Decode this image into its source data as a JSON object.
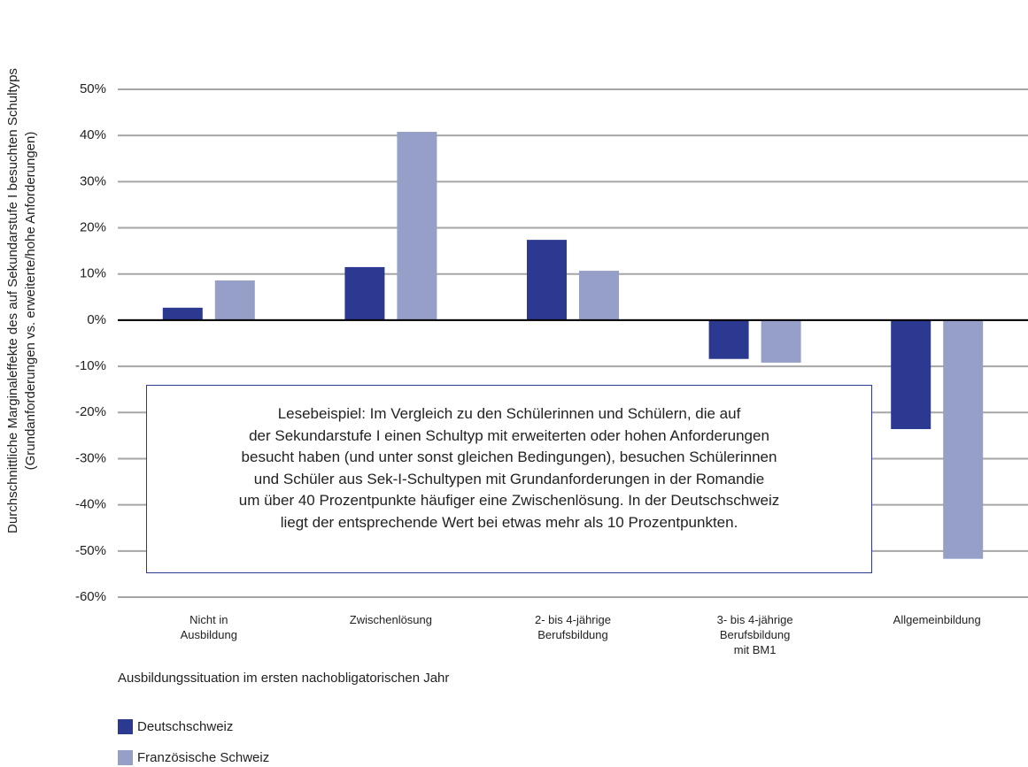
{
  "chart_data": {
    "type": "bar",
    "y_label": "Durchschnittliche Marginaleffekte des auf Sekundarstufe I besuchten Schultyps\n(Grundanforderungen vs. erweiterte/hohe Anforderungen)",
    "x_label": "Ausbildungssituation im ersten nachobligatorischen Jahr",
    "annotation": "Lesebeispiel: Im Vergleich zu den Schülerinnen und Schülern, die auf\nder Sekundarstufe I einen Schultyp mit erweiterten oder hohen Anforderungen\nbesucht haben (und unter sonst gleichen Bedingungen), besuchen Schülerinnen\nund Schüler aus Sek-I-Schultypen mit Grundanforderungen in der Romandie\num über 40 Prozentpunkte häufiger eine Zwischenlösung. In der Deutschschweiz\nliegt der entsprechende Wert bei etwas mehr als 10 Prozentpunkten.",
    "categories": [
      "Nicht in\nAusbildung",
      "Zwischenlösung",
      "2- bis 4-jährige\nBerufsbildung",
      "3- bis 4-jährige\nBerufsbildung\nmit BM1",
      "Allgemeinbildung"
    ],
    "series": [
      {
        "name": "Deutschschweiz",
        "color": "#2b3990",
        "values": [
          2.7,
          11.5,
          17.4,
          -8.4,
          -23.6
        ]
      },
      {
        "name": "Französische Schweiz",
        "color": "#959fc8",
        "values": [
          8.6,
          40.8,
          10.7,
          -9.2,
          -51.7
        ]
      }
    ],
    "ylim": [
      -60,
      50
    ],
    "yticks": [
      {
        "value": -60,
        "label": "-60%"
      },
      {
        "value": -50,
        "label": "-50%"
      },
      {
        "value": -40,
        "label": "-40%"
      },
      {
        "value": -30,
        "label": "-30%"
      },
      {
        "value": -20,
        "label": "-20%"
      },
      {
        "value": -10,
        "label": "-10%"
      },
      {
        "value": 0,
        "label": "0%"
      },
      {
        "value": 10,
        "label": "10%"
      },
      {
        "value": 20,
        "label": "20%"
      },
      {
        "value": 30,
        "label": "30%"
      },
      {
        "value": 40,
        "label": "40%"
      },
      {
        "value": 50,
        "label": "50%"
      }
    ],
    "grid": true
  }
}
